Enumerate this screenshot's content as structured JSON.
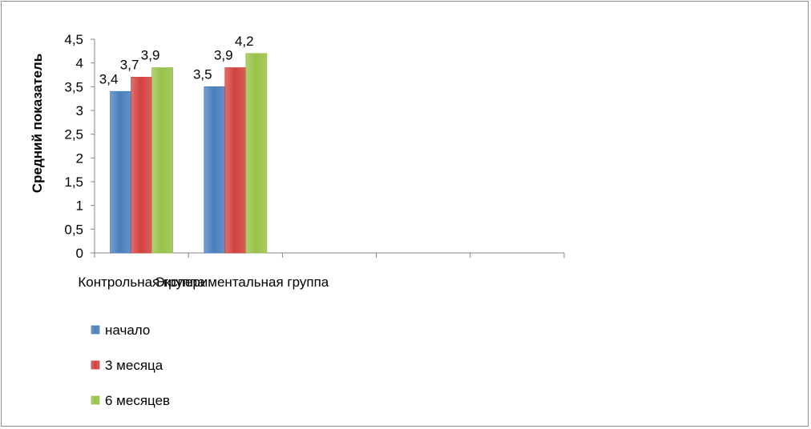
{
  "chart_data": {
    "type": "bar",
    "title": "",
    "xlabel": "",
    "ylabel": "Средний показатель",
    "ylim": [
      0,
      4.5
    ],
    "ytick_step": 0.5,
    "y_tick_labels": [
      "0",
      "0,5",
      "1",
      "1,5",
      "2",
      "2,5",
      "3",
      "3,5",
      "4",
      "4,5"
    ],
    "categories": [
      "Контрольная группа",
      "Экспериментальная группа",
      "",
      "",
      ""
    ],
    "series": [
      {
        "name": "начало",
        "color": "#4a7ebb",
        "values": [
          3.4,
          3.5,
          null,
          null,
          null
        ],
        "labels": [
          "3,4",
          "3,5",
          "",
          "",
          ""
        ]
      },
      {
        "name": "3 месяца",
        "color": "#d2413e",
        "values": [
          3.7,
          3.9,
          null,
          null,
          null
        ],
        "labels": [
          "3,7",
          "3,9",
          "",
          "",
          ""
        ]
      },
      {
        "name": "6 месяцев",
        "color": "#98c147",
        "values": [
          3.9,
          4.2,
          null,
          null,
          null
        ],
        "labels": [
          "3,9",
          "4,2",
          "",
          "",
          ""
        ]
      }
    ],
    "grid": false,
    "legend_position": "bottom-left"
  }
}
